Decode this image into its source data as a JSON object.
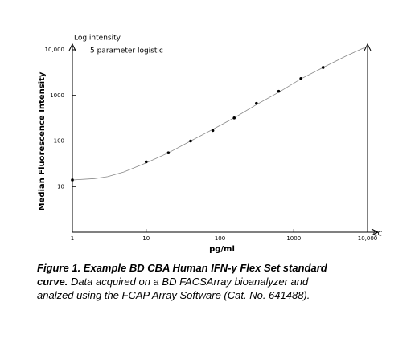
{
  "chart_data": {
    "type": "scatter",
    "y_annotation": "Log intensity",
    "fit_label": "5 parameter logistic",
    "x_annotation": "CC",
    "y_label": "Median Fluorescence Intensity",
    "x_label": "pg/ml",
    "x": [
      1,
      10,
      20,
      40,
      80,
      156,
      312,
      625,
      1250,
      2500
    ],
    "values": [
      14,
      35,
      55,
      100,
      170,
      320,
      670,
      1230,
      2340,
      4100
    ],
    "color": "#000000",
    "curve": {
      "x": [
        1,
        2,
        3,
        5,
        10,
        20,
        40,
        80,
        160,
        320,
        640,
        1250,
        2500,
        5000,
        10000
      ],
      "values": [
        14,
        15,
        16.5,
        21,
        33,
        55,
        100,
        180,
        330,
        640,
        1200,
        2300,
        4100,
        7200,
        12000
      ],
      "color": "#888888"
    },
    "xlog": true,
    "ylog": true,
    "xlim": [
      1,
      10000
    ],
    "ylim": [
      1,
      10000
    ],
    "xticks": [
      1,
      10,
      100,
      1000,
      {
        "value": 10000,
        "label": "10,000"
      }
    ],
    "yticks": [
      10,
      100,
      1000,
      {
        "value": 10000,
        "label": "10,000"
      }
    ],
    "caption": {
      "bold": "Figure 1. Example BD CBA Human IFN-γ Flex Set standard curve.",
      "text": "Data acquired on a BD FACSArray bioanalyzer and analzed using the FCAP Array Software (Cat. No. 641488)."
    }
  }
}
